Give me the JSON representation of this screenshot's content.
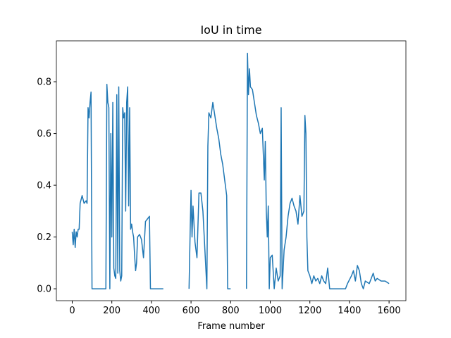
{
  "chart_data": {
    "type": "line",
    "title": "IoU in time",
    "x_label": "Frame number",
    "x": [
      0,
      5,
      10,
      15,
      20,
      25,
      30,
      35,
      40,
      50,
      60,
      70,
      75,
      80,
      85,
      90,
      95,
      100,
      170,
      175,
      180,
      185,
      190,
      195,
      200,
      205,
      210,
      215,
      220,
      225,
      230,
      235,
      240,
      245,
      250,
      255,
      260,
      265,
      270,
      275,
      280,
      285,
      290,
      295,
      300,
      305,
      310,
      315,
      320,
      325,
      330,
      340,
      350,
      360,
      370,
      380,
      390,
      395,
      460,
      575,
      590,
      595,
      600,
      605,
      610,
      620,
      630,
      640,
      650,
      660,
      670,
      680,
      685,
      690,
      700,
      710,
      720,
      730,
      740,
      750,
      760,
      770,
      780,
      785,
      800,
      870,
      880,
      885,
      890,
      895,
      900,
      910,
      920,
      930,
      940,
      950,
      960,
      970,
      975,
      980,
      985,
      990,
      995,
      1000,
      1010,
      1020,
      1030,
      1040,
      1050,
      1055,
      1060,
      1070,
      1080,
      1090,
      1100,
      1110,
      1120,
      1130,
      1140,
      1150,
      1160,
      1170,
      1175,
      1180,
      1185,
      1190,
      1200,
      1210,
      1220,
      1230,
      1240,
      1250,
      1260,
      1270,
      1280,
      1290,
      1300,
      1380,
      1390,
      1410,
      1420,
      1430,
      1440,
      1450,
      1460,
      1470,
      1480,
      1500,
      1510,
      1520,
      1530,
      1540,
      1560,
      1580,
      1600
    ],
    "values": [
      0.22,
      0.17,
      0.23,
      0.16,
      0.22,
      0.2,
      0.23,
      0.23,
      0.33,
      0.36,
      0.33,
      0.34,
      0.33,
      0.7,
      0.66,
      0.72,
      0.76,
      0.0,
      0.0,
      0.79,
      0.72,
      0.7,
      0.0,
      0.6,
      0.2,
      0.72,
      0.08,
      0.05,
      0.04,
      0.75,
      0.06,
      0.78,
      0.07,
      0.03,
      0.05,
      0.7,
      0.66,
      0.68,
      0.3,
      0.72,
      0.78,
      0.32,
      0.7,
      0.23,
      0.25,
      0.22,
      0.2,
      0.13,
      0.07,
      0.1,
      0.2,
      0.21,
      0.19,
      0.12,
      0.26,
      0.27,
      0.28,
      0.0,
      0.0,
      null,
      0.0,
      0.2,
      0.38,
      0.2,
      0.32,
      0.18,
      0.12,
      0.37,
      0.37,
      0.3,
      0.15,
      0.0,
      0.55,
      0.68,
      0.66,
      0.72,
      0.67,
      0.62,
      0.58,
      0.52,
      0.48,
      0.42,
      0.36,
      0.0,
      0.0,
      null,
      0.0,
      0.91,
      0.75,
      0.85,
      0.78,
      0.77,
      0.72,
      0.67,
      0.64,
      0.6,
      0.62,
      0.42,
      0.57,
      0.3,
      0.2,
      0.32,
      0.0,
      0.12,
      0.13,
      0.0,
      0.08,
      0.03,
      0.05,
      0.7,
      0.0,
      0.15,
      0.2,
      0.28,
      0.33,
      0.35,
      0.32,
      0.3,
      0.25,
      0.36,
      0.28,
      0.3,
      0.67,
      0.6,
      0.2,
      0.07,
      0.05,
      0.02,
      0.05,
      0.03,
      0.04,
      0.02,
      0.05,
      0.03,
      0.02,
      0.08,
      0.0,
      0.0,
      0.02,
      0.05,
      0.07,
      0.03,
      0.09,
      0.07,
      0.02,
      0.0,
      0.03,
      0.02,
      0.04,
      0.06,
      0.03,
      0.04,
      0.03,
      0.03,
      0.02
    ],
    "color": "#1f77b4",
    "xlim": [
      -80,
      1685
    ],
    "xticks": [
      0,
      200,
      400,
      600,
      800,
      1000,
      1200,
      1400,
      1600
    ],
    "ylim": [
      -0.046,
      0.958
    ],
    "yticks": [
      {
        "value": 0,
        "label": "0.0"
      },
      0.2,
      0.4,
      0.6,
      0.8
    ],
    "grid": false
  }
}
